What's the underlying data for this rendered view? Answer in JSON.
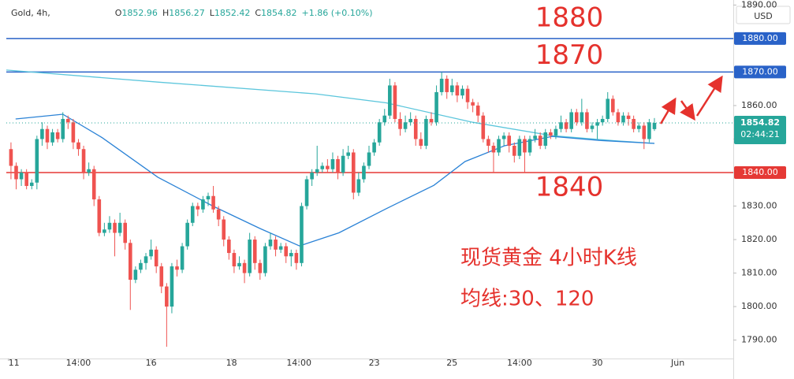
{
  "chart_data": {
    "type": "candlestick",
    "header": {
      "symbol": "Gold, 4h,",
      "fields": [
        {
          "key": "O",
          "value": 1852.96
        },
        {
          "key": "H",
          "value": 1856.27
        },
        {
          "key": "L",
          "value": 1852.42
        },
        {
          "key": "C",
          "value": 1854.82
        }
      ],
      "change": "+1.86 (+0.10%)"
    },
    "currency": "USD",
    "up_color": "#26a69a",
    "down_color": "#ef5350",
    "ylim": [
      1784.5,
      1891.5
    ],
    "yticks": [
      {
        "value": 1790,
        "label": "1790.00"
      },
      {
        "value": 1800,
        "label": "1800.00"
      },
      {
        "value": 1810,
        "label": "1810.00"
      },
      {
        "value": 1820,
        "label": "1820.00"
      },
      {
        "value": 1830,
        "label": "1830.00"
      },
      {
        "value": 1840,
        "label": "1840.00"
      },
      {
        "value": 1850,
        "label": "1850.00"
      },
      {
        "value": 1860,
        "label": "1860.00"
      },
      {
        "value": 1870,
        "label": "1870.00"
      },
      {
        "value": 1880,
        "label": "1880.00"
      },
      {
        "value": 1890,
        "label": "1890.00"
      }
    ],
    "xlim": [
      -0.9,
      139.2
    ],
    "xticks": [
      {
        "value": -0.5,
        "label": "11"
      },
      {
        "value": 13,
        "label": "14:00"
      },
      {
        "value": 27,
        "label": "16"
      },
      {
        "value": 42.5,
        "label": "18"
      },
      {
        "value": 55.5,
        "label": "14:00"
      },
      {
        "value": 70,
        "label": "23"
      },
      {
        "value": 85,
        "label": "25"
      },
      {
        "value": 98,
        "label": "14:00"
      },
      {
        "value": 113,
        "label": "30"
      },
      {
        "value": 128.5,
        "label": "Jun"
      }
    ],
    "grid": false,
    "ohlc": [
      [
        1847,
        1849,
        1838,
        1842
      ],
      [
        1842,
        1843,
        1835,
        1838
      ],
      [
        1838,
        1841,
        1836,
        1840
      ],
      [
        1840,
        1841,
        1835,
        1836
      ],
      [
        1836,
        1838,
        1835,
        1837
      ],
      [
        1837,
        1851,
        1835,
        1850
      ],
      [
        1850,
        1855,
        1848,
        1853
      ],
      [
        1853,
        1854,
        1847,
        1849
      ],
      [
        1849,
        1853,
        1848,
        1852
      ],
      [
        1852,
        1853,
        1849,
        1850
      ],
      [
        1850,
        1858,
        1849,
        1856
      ],
      [
        1856,
        1857,
        1853,
        1855
      ],
      [
        1855,
        1856,
        1847,
        1849
      ],
      [
        1849,
        1850,
        1845,
        1847
      ],
      [
        1847,
        1848,
        1838,
        1840
      ],
      [
        1840,
        1843,
        1839,
        1841
      ],
      [
        1841,
        1842,
        1830,
        1832
      ],
      [
        1832,
        1833,
        1821,
        1822
      ],
      [
        1822,
        1825,
        1821,
        1823
      ],
      [
        1823,
        1827,
        1822,
        1825
      ],
      [
        1825,
        1826,
        1815,
        1822
      ],
      [
        1822,
        1828,
        1821,
        1825
      ],
      [
        1825,
        1826,
        1817,
        1819
      ],
      [
        1819,
        1820,
        1799,
        1808
      ],
      [
        1808,
        1812,
        1807,
        1811
      ],
      [
        1811,
        1814,
        1810,
        1813
      ],
      [
        1813,
        1816,
        1811,
        1815
      ],
      [
        1815,
        1820,
        1814,
        1817
      ],
      [
        1817,
        1818,
        1810,
        1812
      ],
      [
        1812,
        1813,
        1804,
        1806
      ],
      [
        1806,
        1807,
        1788,
        1800
      ],
      [
        1800,
        1813,
        1798,
        1812
      ],
      [
        1812,
        1814,
        1809,
        1811
      ],
      [
        1811,
        1819,
        1810,
        1818
      ],
      [
        1818,
        1826,
        1817,
        1825
      ],
      [
        1825,
        1831,
        1824,
        1830
      ],
      [
        1830,
        1831,
        1827,
        1829
      ],
      [
        1829,
        1833,
        1828,
        1832
      ],
      [
        1832,
        1834,
        1830,
        1833
      ],
      [
        1833,
        1836,
        1828,
        1829
      ],
      [
        1829,
        1830,
        1824,
        1826
      ],
      [
        1826,
        1827,
        1818,
        1820
      ],
      [
        1820,
        1821,
        1814,
        1816
      ],
      [
        1816,
        1817,
        1810,
        1812
      ],
      [
        1812,
        1815,
        1811,
        1813
      ],
      [
        1813,
        1814,
        1807,
        1810
      ],
      [
        1810,
        1822,
        1809,
        1820
      ],
      [
        1820,
        1821,
        1811,
        1813
      ],
      [
        1813,
        1814,
        1808,
        1810
      ],
      [
        1810,
        1819,
        1809,
        1818
      ],
      [
        1818,
        1822,
        1817,
        1820
      ],
      [
        1820,
        1821,
        1815,
        1817
      ],
      [
        1817,
        1819,
        1816,
        1818
      ],
      [
        1818,
        1819,
        1813,
        1815
      ],
      [
        1815,
        1817,
        1812,
        1816
      ],
      [
        1816,
        1817,
        1811,
        1813
      ],
      [
        1813,
        1831,
        1812,
        1830
      ],
      [
        1830,
        1839,
        1829,
        1838
      ],
      [
        1838,
        1841,
        1836,
        1840
      ],
      [
        1840,
        1848,
        1839,
        1841
      ],
      [
        1841,
        1843,
        1840,
        1842
      ],
      [
        1842,
        1844,
        1840,
        1841
      ],
      [
        1841,
        1846,
        1840,
        1844
      ],
      [
        1844,
        1845,
        1838,
        1840
      ],
      [
        1840,
        1847,
        1839,
        1845
      ],
      [
        1845,
        1848,
        1844,
        1846
      ],
      [
        1846,
        1847,
        1832,
        1834
      ],
      [
        1834,
        1840,
        1833,
        1838
      ],
      [
        1838,
        1843,
        1837,
        1842
      ],
      [
        1842,
        1848,
        1841,
        1846
      ],
      [
        1846,
        1850,
        1845,
        1849
      ],
      [
        1849,
        1856,
        1848,
        1855
      ],
      [
        1855,
        1859,
        1854,
        1857
      ],
      [
        1857,
        1868,
        1856,
        1866
      ],
      [
        1866,
        1867,
        1855,
        1856
      ],
      [
        1856,
        1858,
        1851,
        1853
      ],
      [
        1853,
        1857,
        1852,
        1855
      ],
      [
        1855,
        1858,
        1854,
        1856
      ],
      [
        1856,
        1857,
        1848,
        1850
      ],
      [
        1850,
        1852,
        1847,
        1848
      ],
      [
        1848,
        1857,
        1847,
        1856
      ],
      [
        1856,
        1858,
        1854,
        1855
      ],
      [
        1855,
        1866,
        1854,
        1864
      ],
      [
        1864,
        1870,
        1863,
        1868
      ],
      [
        1868,
        1869,
        1862,
        1864
      ],
      [
        1864,
        1868,
        1863,
        1866
      ],
      [
        1866,
        1867,
        1861,
        1863
      ],
      [
        1863,
        1866,
        1862,
        1865
      ],
      [
        1865,
        1866,
        1859,
        1861
      ],
      [
        1861,
        1862,
        1858,
        1860
      ],
      [
        1860,
        1861,
        1855,
        1857
      ],
      [
        1857,
        1858,
        1849,
        1850
      ],
      [
        1850,
        1851,
        1846,
        1848
      ],
      [
        1848,
        1849,
        1840,
        1846
      ],
      [
        1846,
        1851,
        1845,
        1850
      ],
      [
        1850,
        1852,
        1848,
        1851
      ],
      [
        1851,
        1852,
        1846,
        1848
      ],
      [
        1848,
        1849,
        1843,
        1845
      ],
      [
        1845,
        1851,
        1844,
        1850
      ],
      [
        1850,
        1851,
        1840,
        1846
      ],
      [
        1846,
        1851,
        1845,
        1850
      ],
      [
        1850,
        1853,
        1849,
        1851
      ],
      [
        1851,
        1852,
        1847,
        1848
      ],
      [
        1848,
        1853,
        1847,
        1852
      ],
      [
        1852,
        1853,
        1850,
        1851
      ],
      [
        1851,
        1854,
        1850,
        1853
      ],
      [
        1853,
        1857,
        1852,
        1855
      ],
      [
        1855,
        1856,
        1852,
        1853
      ],
      [
        1853,
        1859,
        1852,
        1858
      ],
      [
        1858,
        1859,
        1854,
        1855
      ],
      [
        1855,
        1862,
        1854,
        1858
      ],
      [
        1858,
        1859,
        1852,
        1853
      ],
      [
        1853,
        1855,
        1852,
        1854
      ],
      [
        1854,
        1856,
        1850,
        1855
      ],
      [
        1855,
        1857,
        1854,
        1856
      ],
      [
        1856,
        1864,
        1855,
        1862
      ],
      [
        1862,
        1863,
        1857,
        1858
      ],
      [
        1858,
        1859,
        1854,
        1855
      ],
      [
        1855,
        1858,
        1854,
        1857
      ],
      [
        1857,
        1858,
        1854,
        1856
      ],
      [
        1856,
        1857,
        1852,
        1853
      ],
      [
        1853,
        1855,
        1852,
        1854
      ],
      [
        1854,
        1855,
        1847,
        1850
      ],
      [
        1850,
        1856,
        1849,
        1855
      ],
      [
        1852.96,
        1856.27,
        1852.42,
        1854.82
      ]
    ],
    "ma_lines": [
      {
        "color": "#5cc6dc",
        "x": [
          -0.9,
          28.3,
          58.7,
          72.3,
          89,
          104.3,
          116.4,
          124
        ],
        "values": [
          1870.6,
          1867,
          1863.5,
          1860.8,
          1855,
          1851,
          1849.5,
          1848.7
        ]
      },
      {
        "color": "#2a82d6",
        "x": [
          0.9,
          10,
          17.6,
          28.3,
          38.9,
          48,
          55.6,
          63.2,
          72.3,
          81.5,
          87.5,
          95.1,
          104.3,
          113.4,
          124
        ],
        "values": [
          1856,
          1857.4,
          1850.4,
          1838.6,
          1830,
          1823.3,
          1818.1,
          1822,
          1829.2,
          1836.2,
          1843.3,
          1848,
          1850.8,
          1849.6,
          1848.7
        ]
      }
    ],
    "levels": [
      {
        "value": 1880,
        "label": "1880.00",
        "color": "#2962c8"
      },
      {
        "value": 1870,
        "label": "1870.00",
        "color": "#2962c8"
      },
      {
        "value": 1840,
        "label": "1840.00",
        "color": "#e53935"
      }
    ],
    "last_price": {
      "value": 1854.82,
      "label": "1854.82",
      "countdown": "02:44:21",
      "color": "#26a69a"
    },
    "annotations": [
      {
        "text": "1880",
        "value": 1880
      },
      {
        "text": "1870",
        "value": 1870
      },
      {
        "text": "1840",
        "value": 1840
      }
    ],
    "notes": [
      "现货黄金 4小时K线",
      "均线:30、120"
    ]
  }
}
